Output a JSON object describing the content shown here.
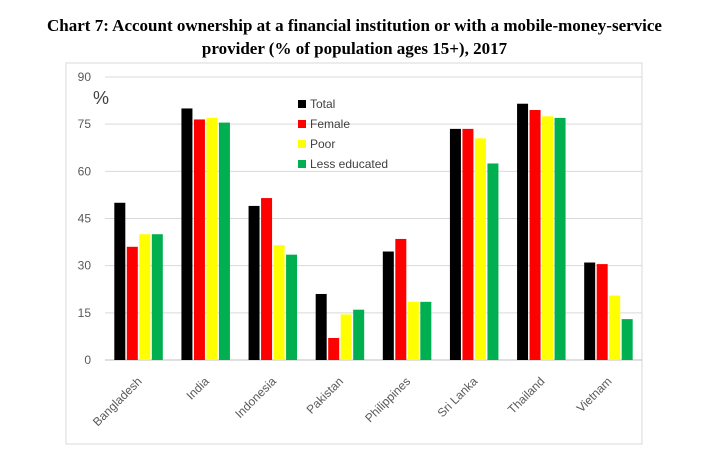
{
  "title_line1": "Chart 7: Account ownership at a financial institution or with a mobile-money-service",
  "title_line2": "provider (% of population ages 15+), 2017",
  "chart_data": {
    "type": "bar",
    "title": "Chart 7: Account ownership at a financial institution or with a mobile-money-service provider (% of population ages 15+), 2017",
    "unit_label": "%",
    "categories": [
      "Bangladesh",
      "India",
      "Indonesia",
      "Pakistan",
      "Philippines",
      "Sri Lanka",
      "Thailand",
      "Vietnam"
    ],
    "series": [
      {
        "name": "Total",
        "color": "#000000",
        "values": [
          50,
          80,
          49,
          21,
          34.5,
          73.5,
          81.5,
          31
        ]
      },
      {
        "name": "Female",
        "color": "#ff0000",
        "values": [
          36,
          76.5,
          51.5,
          7,
          38.5,
          73.5,
          79.5,
          30.5
        ]
      },
      {
        "name": "Poor",
        "color": "#ffff00",
        "values": [
          40,
          77,
          36.5,
          14.5,
          18.5,
          70.5,
          77.5,
          20.5
        ]
      },
      {
        "name": "Less educated",
        "color": "#00b050",
        "values": [
          40,
          75.5,
          33.5,
          16,
          18.5,
          62.5,
          77,
          13
        ]
      }
    ],
    "yticks": [
      0,
      15,
      30,
      45,
      60,
      75,
      90
    ],
    "ylim": [
      0,
      90
    ],
    "grid": true,
    "legend_position": "top-center"
  }
}
